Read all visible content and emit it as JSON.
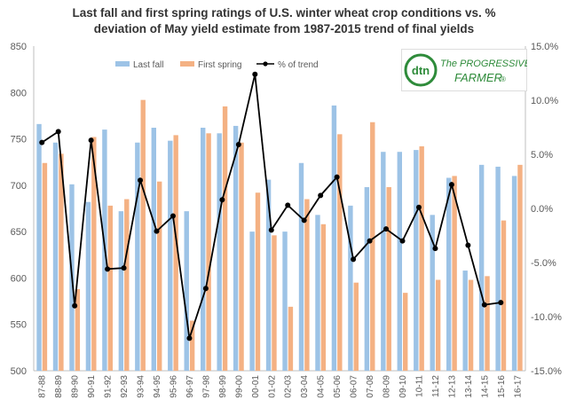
{
  "chart_data": {
    "type": "bar",
    "title_line1": "Last fall and first spring ratings of U.S. winter wheat crop conditions vs. %",
    "title_line2": "deviation of May yield estimate from 1987-2015 trend of final yields",
    "categories": [
      "87-88",
      "88-89",
      "89-90",
      "90-91",
      "91-92",
      "92-93",
      "93-94",
      "94-95",
      "95-96",
      "96-97",
      "97-98",
      "98-99",
      "99-00",
      "00-01",
      "01-02",
      "02-03",
      "03-04",
      "04-05",
      "05-06",
      "06-07",
      "07-08",
      "08-09",
      "09-10",
      "10-11",
      "11-12",
      "12-13",
      "13-14",
      "14-15",
      "15-16",
      "16-17"
    ],
    "series": [
      {
        "name": "Last fall",
        "axis": "left",
        "kind": "bar",
        "color": "#9dc3e6",
        "values": [
          766,
          746,
          701,
          682,
          760,
          672,
          746,
          762,
          748,
          672,
          762,
          756,
          764,
          650,
          706,
          650,
          724,
          668,
          786,
          678,
          698,
          736,
          736,
          738,
          668,
          708,
          608,
          722,
          720,
          710
        ]
      },
      {
        "name": "First spring",
        "axis": "left",
        "kind": "bar",
        "color": "#f4b183",
        "values": [
          724,
          734,
          588,
          752,
          678,
          685,
          792,
          704,
          754,
          554,
          756,
          785,
          746,
          692,
          646,
          569,
          685,
          658,
          755,
          595,
          768,
          698,
          584,
          742,
          598,
          710,
          598,
          602,
          662,
          722
        ]
      },
      {
        "name": "% of trend",
        "axis": "right",
        "kind": "line",
        "color": "#000000",
        "values": [
          6.1,
          7.1,
          -9.0,
          6.3,
          -5.6,
          -5.5,
          2.6,
          -2.1,
          -0.7,
          -12.0,
          -7.4,
          0.8,
          5.9,
          12.4,
          -2.0,
          0.3,
          -1.1,
          1.2,
          2.9,
          -4.7,
          -3.0,
          -1.9,
          -3.0,
          0.1,
          -3.7,
          2.2,
          -3.4,
          -8.9,
          -8.7,
          null
        ]
      }
    ],
    "ylim_left": [
      500,
      850
    ],
    "left_ticks": [
      "500",
      "550",
      "600",
      "650",
      "700",
      "750",
      "800",
      "850"
    ],
    "ylim_right": [
      -15,
      15
    ],
    "right_ticks": [
      "-15.0%",
      "-10.0%",
      "-5.0%",
      "0.0%",
      "5.0%",
      "10.0%",
      "15.0%"
    ],
    "legend_position": "top-center",
    "grid": false
  },
  "logo": {
    "badge": "dtn",
    "line1": "The PROGRESSIVE",
    "line2": "FARMER",
    "reg": "®",
    "color": "#2e8b3a"
  }
}
